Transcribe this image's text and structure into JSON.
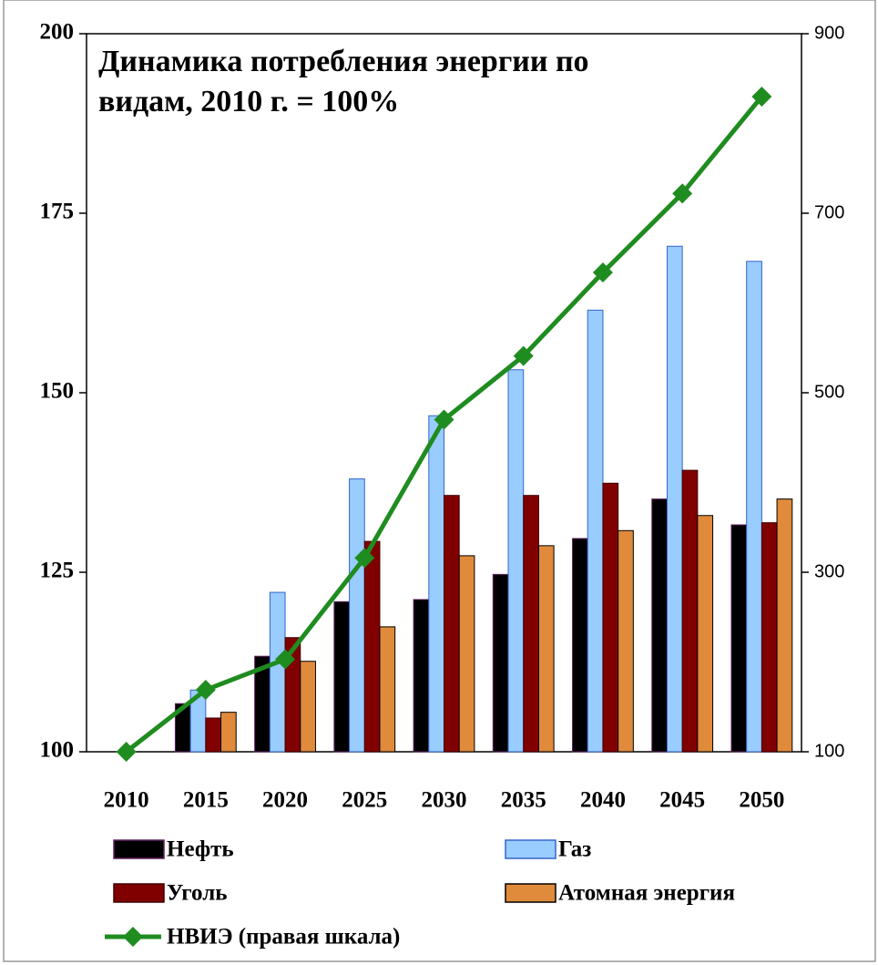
{
  "chart_data": {
    "type": "bar",
    "title": "Динамика потребления энергии по видам, 2010 г. = 100%",
    "categories": [
      "2010",
      "2015",
      "2020",
      "2025",
      "2030",
      "2035",
      "2040",
      "2045",
      "2050"
    ],
    "series": [
      {
        "name": "Нефть",
        "color": "#000000",
        "values": [
          100,
          106.7,
          113.3,
          120.9,
          121.2,
          124.7,
          129.7,
          135.2,
          131.6
        ]
      },
      {
        "name": "Газ",
        "color": "#99ccff",
        "values": [
          100,
          108.6,
          122.2,
          138,
          146.8,
          153.2,
          161.5,
          170.4,
          168.3
        ]
      },
      {
        "name": "Уголь",
        "color": "#800000",
        "values": [
          100,
          104.7,
          115.9,
          129.3,
          135.7,
          135.7,
          137.4,
          139.2,
          131.9
        ]
      },
      {
        "name": "Атомная энергия",
        "color": "#e08a3c",
        "values": [
          100,
          105.5,
          112.6,
          117.4,
          127.3,
          128.7,
          130.8,
          132.9,
          135.2
        ]
      },
      {
        "name": "НВИЭ (правая шкала)",
        "color": "#1f8c1f",
        "type": "line",
        "marker": "diamond",
        "axis": "y2",
        "values": [
          100,
          169,
          203,
          316,
          470,
          541,
          634,
          722,
          830
        ]
      }
    ],
    "ylim": [
      100,
      200
    ],
    "yticks": [
      100,
      125,
      150,
      175,
      200
    ],
    "y2lim": [
      100,
      900
    ],
    "y2ticks": [
      100,
      300,
      500,
      700,
      900
    ],
    "grid": false,
    "legend": "bottom"
  }
}
